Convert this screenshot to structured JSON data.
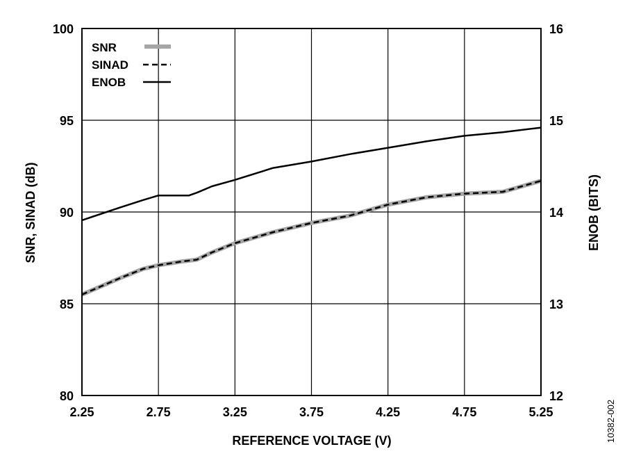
{
  "chart_data": {
    "type": "line",
    "xlabel": "REFERENCE VOLTAGE (V)",
    "ylabel": "SNR, SINAD (dB)",
    "y2label": "ENOB (BITS)",
    "xlim": [
      2.25,
      5.25
    ],
    "ylim": [
      80,
      100
    ],
    "y2lim": [
      12,
      16
    ],
    "xticks": [
      "2.25",
      "2.75",
      "3.25",
      "3.75",
      "4.25",
      "4.75",
      "5.25"
    ],
    "yticks": [
      "80",
      "85",
      "90",
      "95",
      "100"
    ],
    "y2ticks": [
      "12",
      "13",
      "14",
      "15",
      "16"
    ],
    "grid": true,
    "legend_position": "top-left",
    "series": [
      {
        "name": "SNR",
        "axis": "left",
        "style": "thick-solid",
        "color": "#a6a6a6",
        "x": [
          2.25,
          2.5,
          2.65,
          2.75,
          2.9,
          3.0,
          3.1,
          3.25,
          3.5,
          3.75,
          4.0,
          4.25,
          4.5,
          4.75,
          5.0,
          5.25
        ],
        "values": [
          85.5,
          86.4,
          86.9,
          87.1,
          87.3,
          87.4,
          87.8,
          88.3,
          88.9,
          89.4,
          89.8,
          90.4,
          90.8,
          91.0,
          91.1,
          91.7
        ]
      },
      {
        "name": "SINAD",
        "axis": "left",
        "style": "dashed",
        "color": "#000000",
        "x": [
          2.25,
          2.5,
          2.65,
          2.75,
          2.9,
          3.0,
          3.1,
          3.25,
          3.5,
          3.75,
          4.0,
          4.25,
          4.5,
          4.75,
          5.0,
          5.25
        ],
        "values": [
          85.5,
          86.4,
          86.9,
          87.1,
          87.3,
          87.4,
          87.8,
          88.3,
          88.9,
          89.4,
          89.8,
          90.4,
          90.8,
          91.0,
          91.1,
          91.7
        ]
      },
      {
        "name": "ENOB",
        "axis": "right",
        "style": "solid",
        "color": "#000000",
        "x": [
          2.25,
          2.5,
          2.65,
          2.75,
          2.85,
          2.95,
          3.0,
          3.1,
          3.25,
          3.5,
          3.75,
          4.0,
          4.25,
          4.5,
          4.75,
          5.0,
          5.25
        ],
        "values": [
          13.91,
          14.05,
          14.13,
          14.18,
          14.18,
          14.18,
          14.21,
          14.28,
          14.35,
          14.48,
          14.55,
          14.63,
          14.7,
          14.77,
          14.83,
          14.87,
          14.92
        ]
      }
    ]
  },
  "figure_id": "10382-002"
}
